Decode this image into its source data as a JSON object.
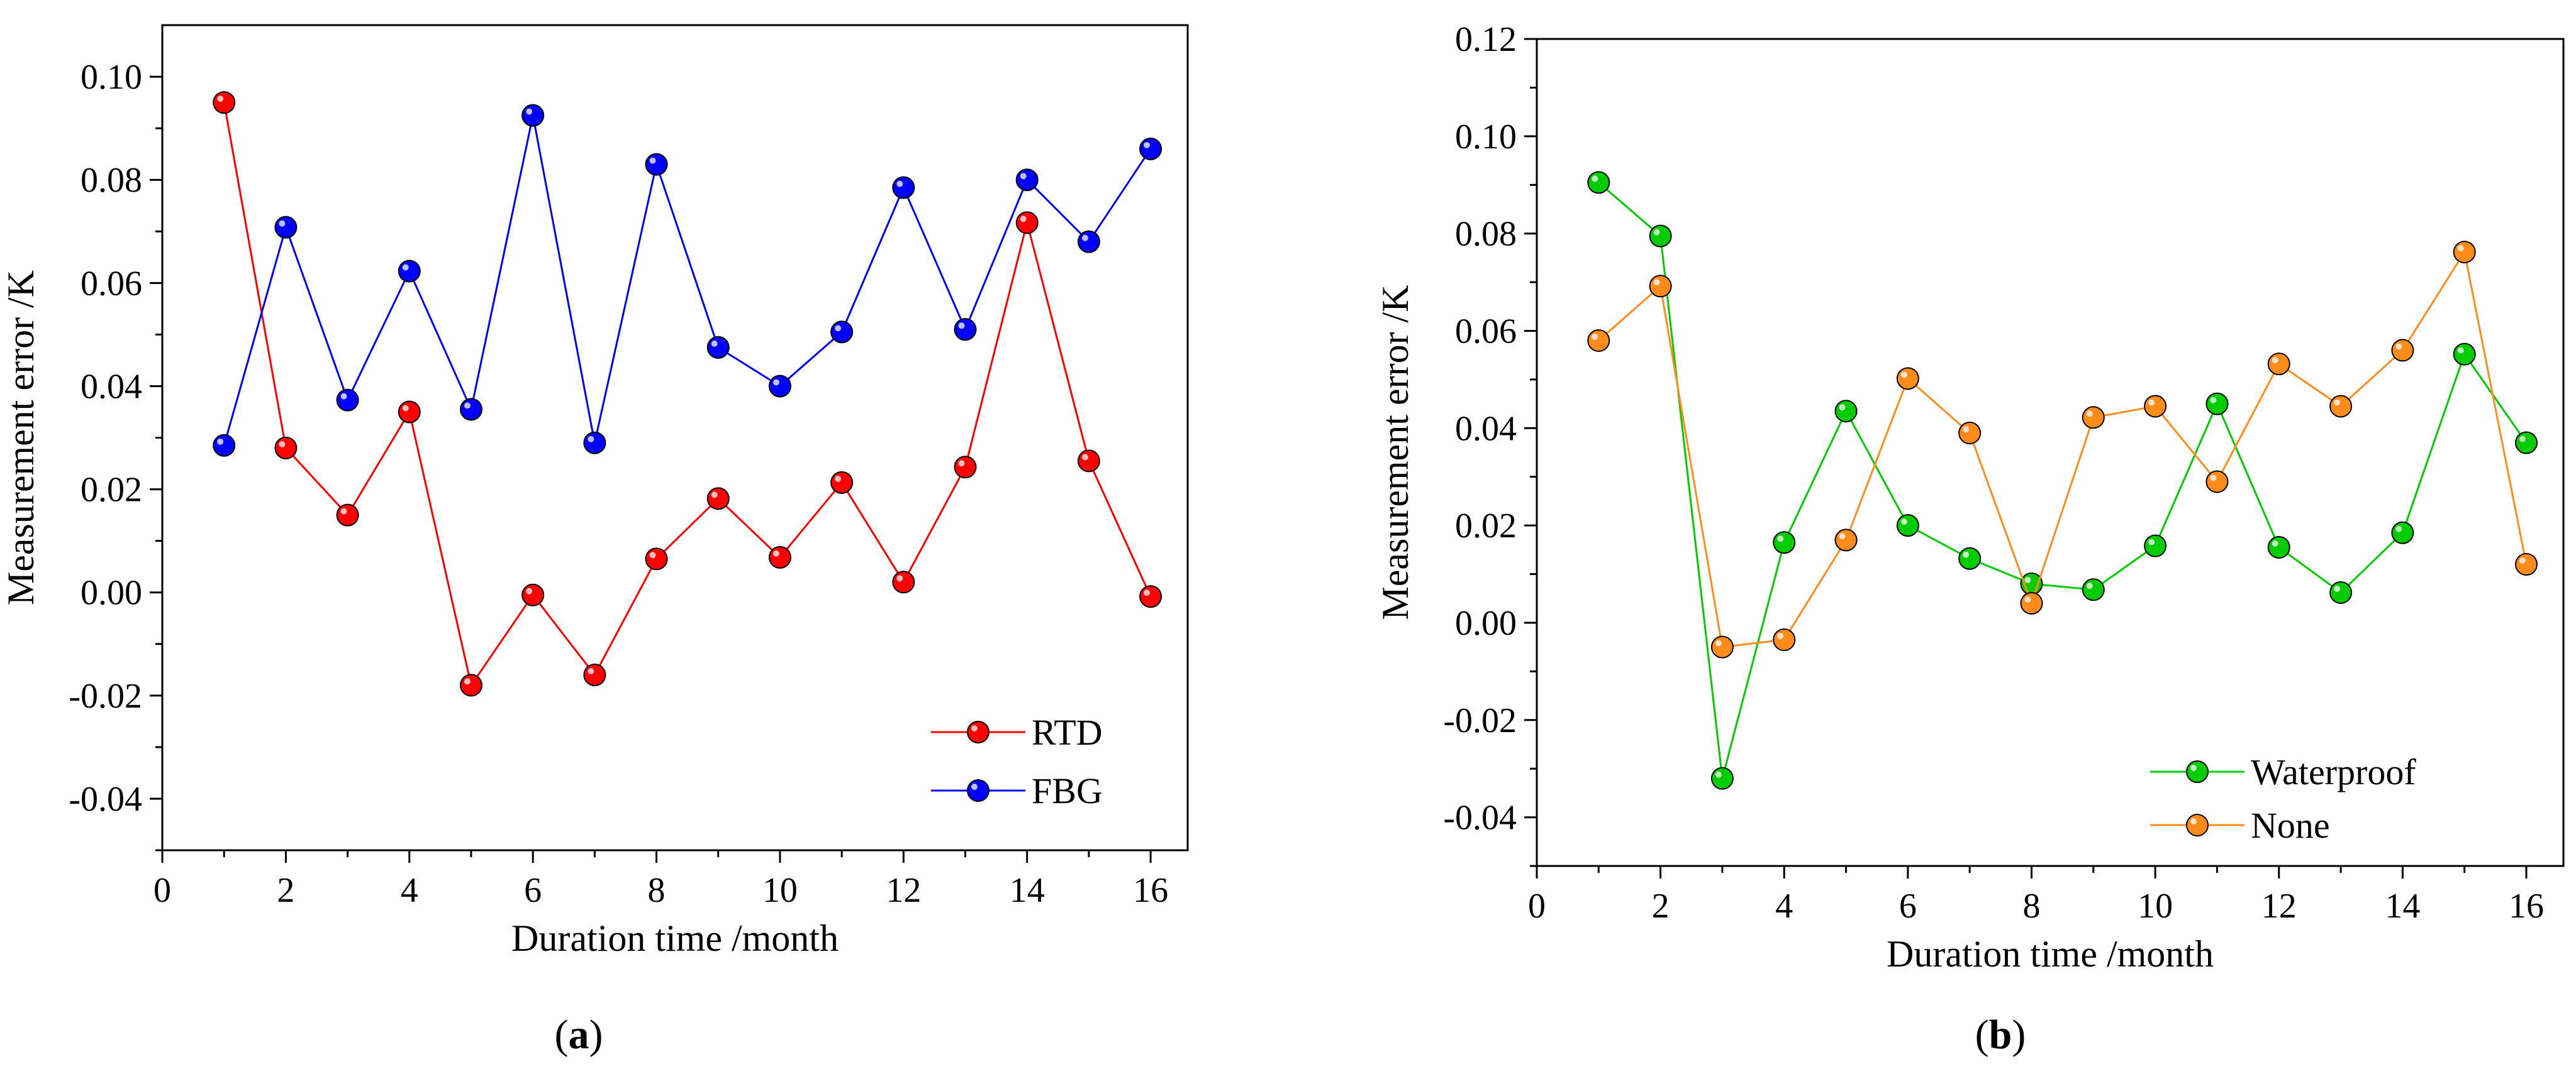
{
  "chart_data": [
    {
      "type": "line",
      "panel_label": "a",
      "xlabel": "Duration time /month",
      "ylabel": "Measurement error /K",
      "xlim": [
        0,
        16.6
      ],
      "ylim": [
        -0.05,
        0.11
      ],
      "xticks": [
        0,
        2,
        4,
        6,
        8,
        10,
        12,
        14,
        16
      ],
      "yticks": [
        -0.04,
        -0.02,
        0.0,
        0.02,
        0.04,
        0.06,
        0.08,
        0.1
      ],
      "ytick_labels": [
        "-0.04",
        "-0.02",
        "0.00",
        "0.02",
        "0.04",
        "0.06",
        "0.08",
        "0.10"
      ],
      "legend": "bottom-right",
      "x": [
        1,
        2,
        3,
        4,
        5,
        6,
        7,
        8,
        9,
        10,
        11,
        12,
        13,
        14,
        15,
        16
      ],
      "series": [
        {
          "name": "RTD",
          "color": "#ff0000",
          "values": [
            0.095,
            0.028,
            0.015,
            0.035,
            -0.018,
            -0.0005,
            -0.016,
            0.0065,
            0.0182,
            0.0068,
            0.0213,
            0.002,
            0.0243,
            0.0717,
            0.0255,
            -0.0008
          ]
        },
        {
          "name": "FBG",
          "color": "#0000ff",
          "values": [
            0.0285,
            0.0708,
            0.0373,
            0.0623,
            0.0355,
            0.0925,
            0.029,
            0.083,
            0.0475,
            0.04,
            0.0505,
            0.0785,
            0.051,
            0.08,
            0.068,
            0.086
          ]
        }
      ]
    },
    {
      "type": "line",
      "panel_label": "b",
      "xlabel": "Duration time /month",
      "ylabel": "Measurement error /K",
      "xlim": [
        0,
        16.6
      ],
      "ylim": [
        -0.05,
        0.12
      ],
      "xticks": [
        0,
        2,
        4,
        6,
        8,
        10,
        12,
        14,
        16
      ],
      "yticks": [
        -0.04,
        -0.02,
        0.0,
        0.02,
        0.04,
        0.06,
        0.08,
        0.1,
        0.12
      ],
      "ytick_labels": [
        "-0.04",
        "-0.02",
        "0.00",
        "0.02",
        "0.04",
        "0.06",
        "0.08",
        "0.10",
        "0.12"
      ],
      "legend": "bottom-right",
      "x": [
        1,
        2,
        3,
        4,
        5,
        6,
        7,
        8,
        9,
        10,
        11,
        12,
        13,
        14,
        15,
        16
      ],
      "series": [
        {
          "name": "Waterproof",
          "color": "#00cc00",
          "values": [
            0.0905,
            0.0795,
            -0.032,
            0.0165,
            0.0435,
            0.02,
            0.0132,
            0.008,
            0.0068,
            0.0158,
            0.045,
            0.0155,
            0.0062,
            0.0185,
            0.0552,
            0.037
          ]
        },
        {
          "name": "None",
          "color": "#ff8c1a",
          "values": [
            0.058,
            0.0692,
            -0.005,
            -0.0035,
            0.017,
            0.0502,
            0.039,
            0.004,
            0.0422,
            0.0445,
            0.029,
            0.0532,
            0.0445,
            0.056,
            0.0762,
            0.012
          ]
        }
      ]
    }
  ]
}
